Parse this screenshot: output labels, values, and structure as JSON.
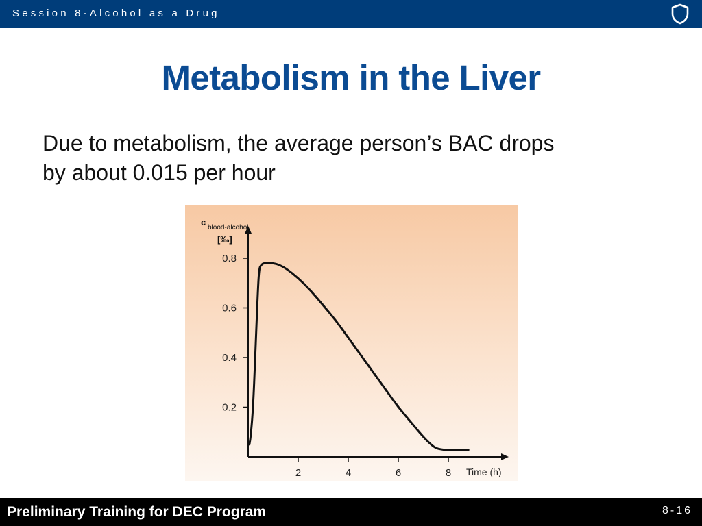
{
  "header": {
    "session_label": "Session 8-Alcohol as a Drug",
    "logo_icon": "shield-icon",
    "bar_color": "#003d7a"
  },
  "slide": {
    "title": "Metabolism in the Liver",
    "body_lines": [
      "Due to metabolism, the average person’s BAC drops",
      "by about 0.015 per hour"
    ],
    "title_color": "#0b4b93"
  },
  "chart_data": {
    "type": "line",
    "ylabel_main": "c",
    "ylabel_sub": "blood-alcohol",
    "yunit": "[‰]",
    "xlabel": "Time (h)",
    "xticks": [
      2,
      4,
      6,
      8
    ],
    "yticks": [
      "0.2",
      "0.4",
      "0.6",
      "0.8"
    ],
    "xlim": [
      0,
      9.2
    ],
    "ylim": [
      0,
      0.98
    ],
    "grid": false,
    "series": [
      {
        "x": [
          0.05,
          0.1,
          0.2,
          0.3,
          0.4,
          0.45,
          0.5,
          0.6,
          0.8,
          1.0,
          1.2,
          1.5,
          2.0,
          2.5,
          3.0,
          3.5,
          4.0,
          4.5,
          5.0,
          5.5,
          6.0,
          6.5,
          7.0,
          7.3,
          7.5,
          7.7,
          7.9,
          8.2,
          8.5,
          8.8
        ],
        "y": [
          0.05,
          0.08,
          0.2,
          0.45,
          0.7,
          0.76,
          0.77,
          0.78,
          0.78,
          0.78,
          0.775,
          0.76,
          0.72,
          0.67,
          0.61,
          0.55,
          0.48,
          0.41,
          0.34,
          0.27,
          0.2,
          0.14,
          0.08,
          0.05,
          0.035,
          0.03,
          0.028,
          0.028,
          0.028,
          0.028
        ]
      }
    ]
  },
  "footer": {
    "program": "Preliminary Training for DEC Program",
    "page": "8-16"
  }
}
